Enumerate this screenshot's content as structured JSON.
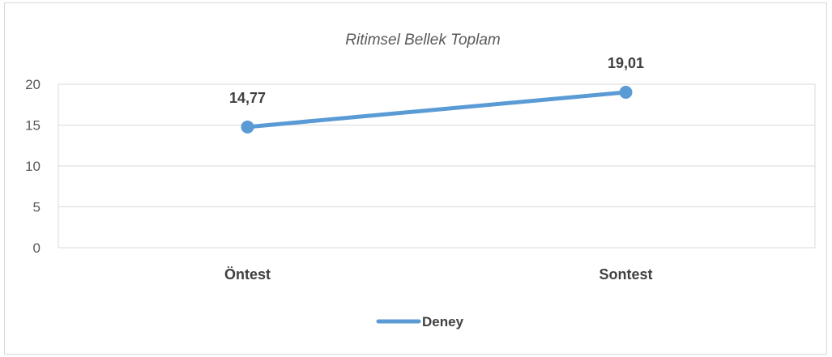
{
  "chart_data": {
    "type": "line",
    "title": "Ritimsel Bellek Toplam",
    "categories": [
      "Öntest",
      "Sontest"
    ],
    "series": [
      {
        "name": "Deney",
        "values": [
          14.77,
          19.01
        ],
        "labels": [
          "14,77",
          "19,01"
        ],
        "color": "#5b9bd5"
      }
    ],
    "ylim": [
      0,
      20
    ],
    "yticks": [
      "0",
      "5",
      "10",
      "15",
      "20"
    ],
    "grid": true,
    "legend": "bottom"
  }
}
